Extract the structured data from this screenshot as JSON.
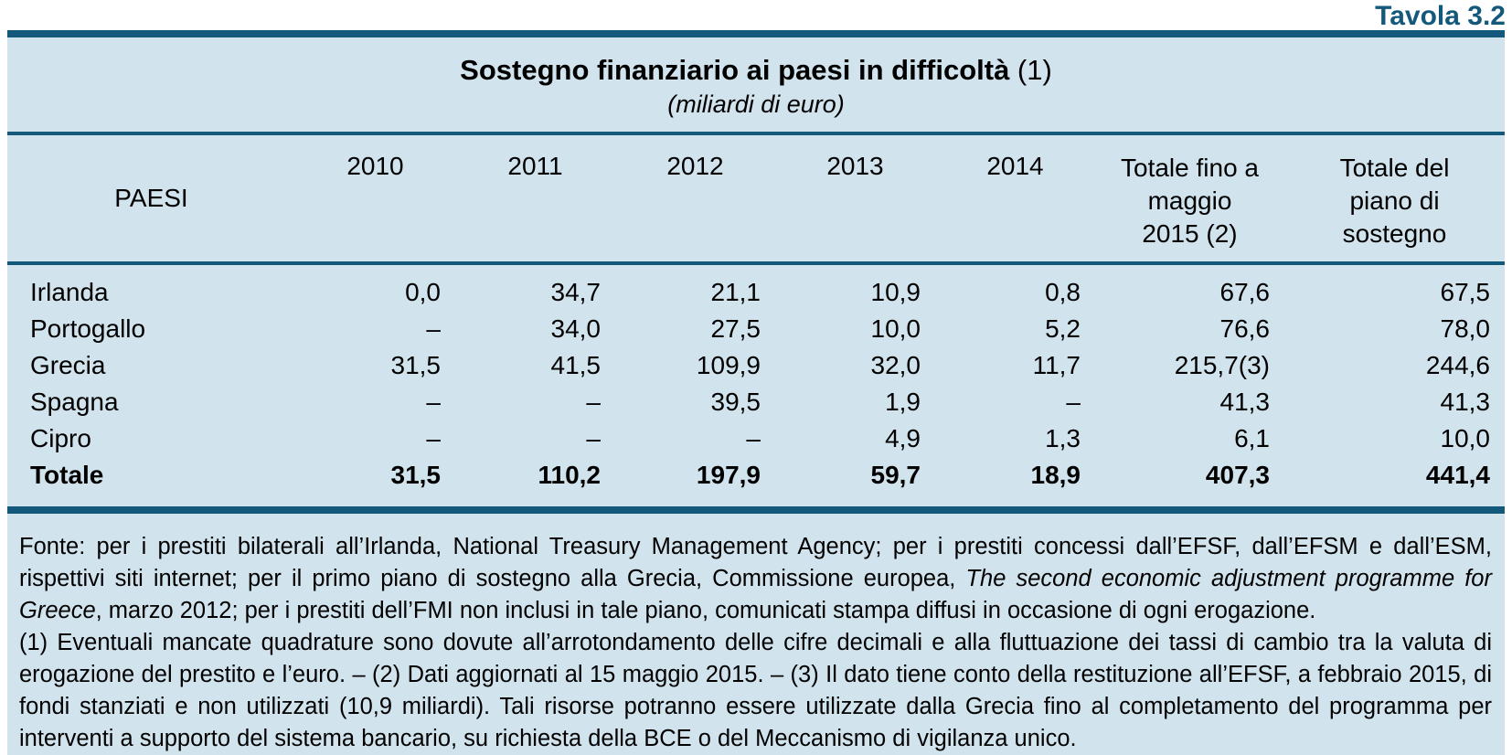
{
  "header": {
    "table_label": "Tavola 3.2",
    "title_main": "Sostegno finanziario ai paesi in difficoltà",
    "title_note": " (1)",
    "subtitle": "(miliardi di euro)"
  },
  "colors": {
    "accent_teal": "#14597c",
    "panel_blue": "#d1e3ed",
    "text": "#000000"
  },
  "table": {
    "row_header": "PAESI",
    "columns": [
      "2010",
      "2011",
      "2012",
      "2013",
      "2014",
      "Totale fino a maggio 2015 (2)",
      "Totale del piano di sostegno"
    ],
    "rows": [
      {
        "label": "Irlanda",
        "values": [
          "0,0",
          "34,7",
          "21,1",
          "10,9",
          "0,8",
          "67,6",
          "67,5"
        ]
      },
      {
        "label": "Portogallo",
        "values": [
          "–",
          "34,0",
          "27,5",
          "10,0",
          "5,2",
          "76,6",
          "78,0"
        ]
      },
      {
        "label": "Grecia",
        "values": [
          "31,5",
          "41,5",
          "109,9",
          "32,0",
          "11,7",
          "215,7(3)",
          "244,6"
        ]
      },
      {
        "label": "Spagna",
        "values": [
          "–",
          "–",
          "39,5",
          "1,9",
          "–",
          "41,3",
          "41,3"
        ]
      },
      {
        "label": "Cipro",
        "values": [
          "–",
          "–",
          "–",
          "4,9",
          "1,3",
          "6,1",
          "10,0"
        ]
      },
      {
        "label": "Totale",
        "values": [
          "31,5",
          "110,2",
          "197,9",
          "59,7",
          "18,9",
          "407,3",
          "441,4"
        ]
      }
    ]
  },
  "footnotes": {
    "fonte_part1": "Fonte: per i prestiti bilaterali all’Irlanda, National Treasury Management Agency; per i prestiti concessi dall’EFSF, dall’EFSM e dall’ESM, rispettivi siti internet; per il primo piano di sostegno alla Grecia, Commissione europea, ",
    "fonte_italic": "The second economic adjustment programme for Greece",
    "fonte_part2": ", marzo 2012; per i prestiti dell’FMI non inclusi in tale piano, comunicati stampa diffusi in occasione di ogni erogazione.",
    "notes": "(1) Eventuali mancate quadrature sono dovute all’arrotondamento delle cifre decimali e alla fluttuazione dei tassi di cambio tra la valuta di erogazione del prestito e l’euro. – (2) Dati aggiornati al 15 maggio 2015. – (3) Il dato tiene conto della restituzione all’EFSF, a febbraio 2015, di fondi stanziati e non utilizzati (10,9 miliardi). Tali risorse potranno essere utilizzate dalla Grecia fino al completamento del programma per interventi a supporto del sistema bancario, su richiesta della BCE o del Meccanismo di vigilanza unico."
  }
}
